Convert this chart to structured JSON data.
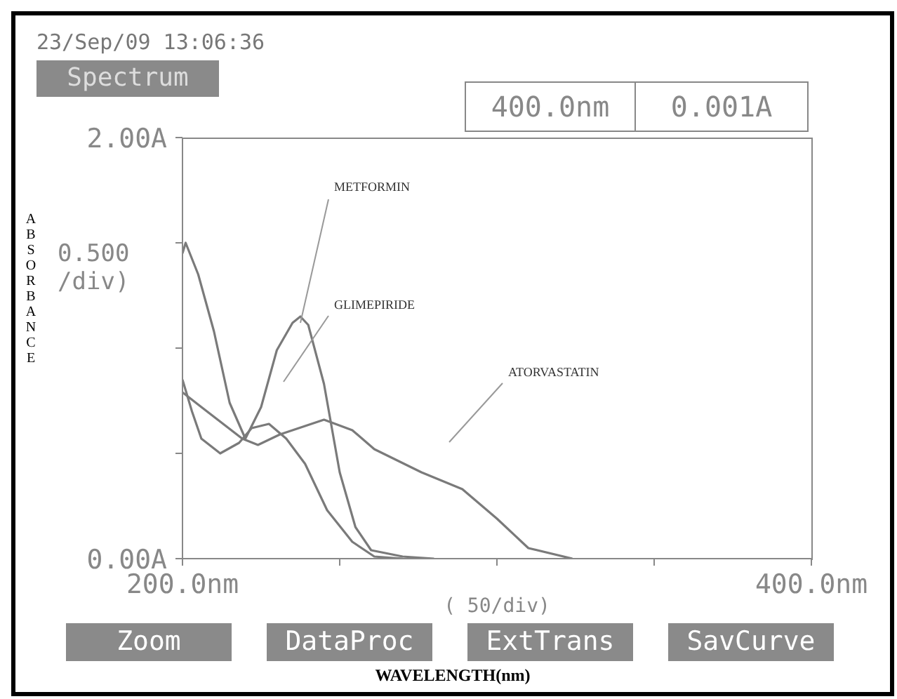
{
  "chart_data": {
    "type": "line",
    "xlabel": "WAVELENGTH(nm)",
    "ylabel": "ABSORBANCE",
    "annotations": [
      "23/Sep/09 13:06:36",
      "Spectrum",
      "400.0nm",
      "0.001A",
      "0.500 /div)",
      "( 50/div)",
      "Zoom",
      "DataProc",
      "ExtTrans",
      "SavCurve"
    ],
    "xlim": [
      200,
      400
    ],
    "ylim": [
      0,
      2
    ],
    "xticks": [
      {
        "value": 200,
        "label": "200.0nm"
      },
      {
        "value": 250,
        "label": null
      },
      {
        "value": 300,
        "label": null
      },
      {
        "value": 350,
        "label": null
      },
      {
        "value": 400,
        "label": "400.0nm"
      }
    ],
    "yticks": [
      {
        "value": 0,
        "label": "0.00A"
      },
      {
        "value": 0.5,
        "label": null
      },
      {
        "value": 1,
        "label": null
      },
      {
        "value": 1.5,
        "label": null
      },
      {
        "value": 2,
        "label": "2.00A"
      }
    ],
    "marker": "none",
    "line_style": "solid",
    "series": [
      {
        "name": "METFORMIN",
        "color": "#7a7a7a",
        "x": [
          200,
          201,
          205,
          210,
          215,
          220,
          225,
          230,
          235,
          237.5,
          240,
          245,
          250,
          255,
          260,
          270,
          280
        ],
        "values": [
          1.45,
          1.5,
          1.35,
          1.08,
          0.74,
          0.57,
          0.72,
          0.99,
          1.12,
          1.15,
          1.11,
          0.83,
          0.41,
          0.15,
          0.04,
          0.01,
          0
        ]
      },
      {
        "name": "GLIMEPIRIDE",
        "color": "#7a7a7a",
        "x": [
          200,
          203,
          206,
          212,
          218,
          222,
          227.5,
          233,
          239,
          246,
          254,
          261,
          270
        ],
        "values": [
          0.85,
          0.7,
          0.57,
          0.5,
          0.55,
          0.62,
          0.64,
          0.57,
          0.45,
          0.23,
          0.08,
          0.01,
          0
        ]
      },
      {
        "name": "ATORVASTATIN",
        "color": "#7a7a7a",
        "x": [
          200,
          206,
          219,
          224,
          231,
          245,
          254,
          261,
          276,
          289,
          300,
          310,
          324
        ],
        "values": [
          0.79,
          0.72,
          0.57,
          0.54,
          0.59,
          0.66,
          0.61,
          0.52,
          0.41,
          0.33,
          0.19,
          0.05,
          0
        ]
      }
    ]
  }
}
